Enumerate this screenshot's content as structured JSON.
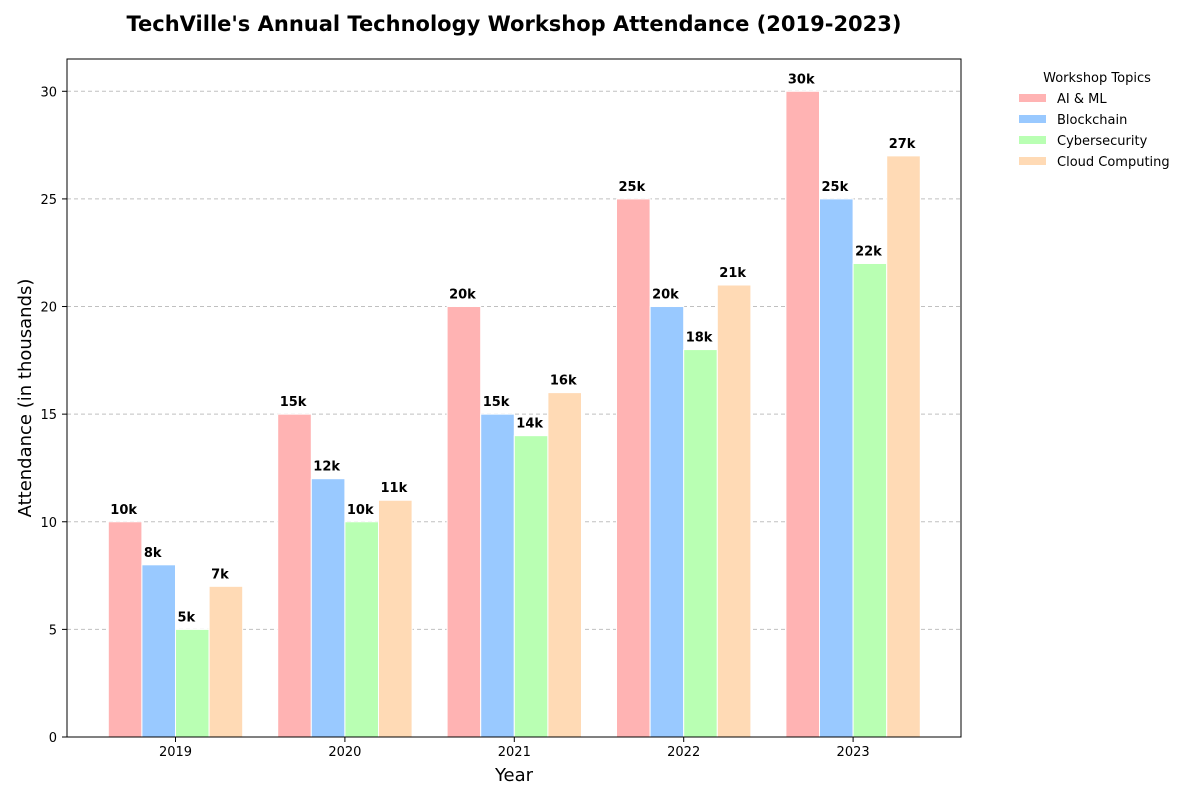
{
  "chart_data": {
    "type": "bar",
    "title": "TechVille's Annual Technology Workshop Attendance (2019-2023)",
    "xlabel": "Year",
    "ylabel": "Attendance (in thousands)",
    "categories": [
      "2019",
      "2020",
      "2021",
      "2022",
      "2023"
    ],
    "ylim": [
      0,
      31.5
    ],
    "yticks": [
      0,
      5,
      10,
      15,
      20,
      25,
      30
    ],
    "grid": true,
    "legend": {
      "title": "Workshop Topics",
      "placement": "outside-top-right"
    },
    "series": [
      {
        "name": "AI & ML",
        "color": "#ffb3b3",
        "values": [
          10,
          15,
          20,
          25,
          30
        ],
        "labels": [
          "10k",
          "15k",
          "20k",
          "25k",
          "30k"
        ]
      },
      {
        "name": "Blockchain",
        "color": "#99c9ff",
        "values": [
          8,
          12,
          15,
          20,
          25
        ],
        "labels": [
          "8k",
          "12k",
          "15k",
          "20k",
          "25k"
        ]
      },
      {
        "name": "Cybersecurity",
        "color": "#b9ffb3",
        "values": [
          5,
          10,
          14,
          18,
          22
        ],
        "labels": [
          "5k",
          "10k",
          "14k",
          "18k",
          "22k"
        ]
      },
      {
        "name": "Cloud Computing",
        "color": "#ffdab5",
        "values": [
          7,
          11,
          16,
          21,
          27
        ],
        "labels": [
          "7k",
          "11k",
          "16k",
          "21k",
          "27k"
        ]
      }
    ]
  }
}
